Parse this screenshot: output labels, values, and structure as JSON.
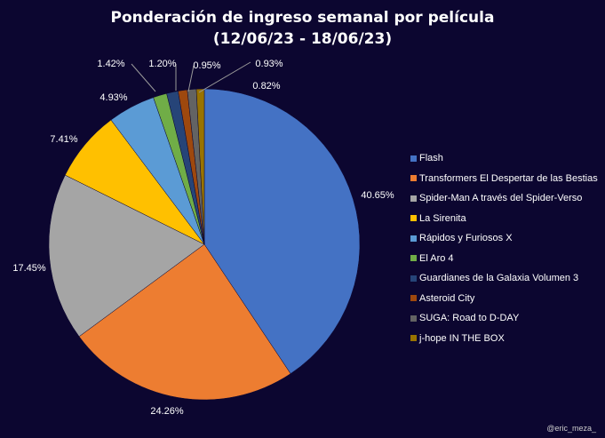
{
  "chart_data": {
    "type": "pie",
    "title_line1": "Ponderación de ingreso semanal por película",
    "title_line2": "(12/06/23 - 18/06/23)",
    "categories": [
      "Flash",
      "Transformers El Despertar de las Bestias",
      "Spider-Man A través del Spider-Verso",
      "La Sirenita",
      "Rápidos y Furiosos X",
      "El Aro 4",
      "Guardianes de la Galaxia Volumen 3",
      "Asteroid City",
      "SUGA: Road to D-DAY",
      "j-hope IN THE BOX"
    ],
    "values": [
      40.65,
      24.26,
      17.45,
      7.41,
      4.93,
      1.42,
      1.2,
      0.95,
      0.93,
      0.82
    ],
    "labels": [
      "40.65%",
      "24.26%",
      "17.45%",
      "7.41%",
      "4.93%",
      "1.42%",
      "1.20%",
      "0.95%",
      "0.93%",
      "0.82%"
    ],
    "colors": [
      "#4472c4",
      "#ed7d31",
      "#a5a5a5",
      "#ffc000",
      "#5b9bd5",
      "#70ad47",
      "#264478",
      "#9e480e",
      "#636363",
      "#997300"
    ],
    "legend_position": "right"
  },
  "watermark": "@eric_meza_"
}
